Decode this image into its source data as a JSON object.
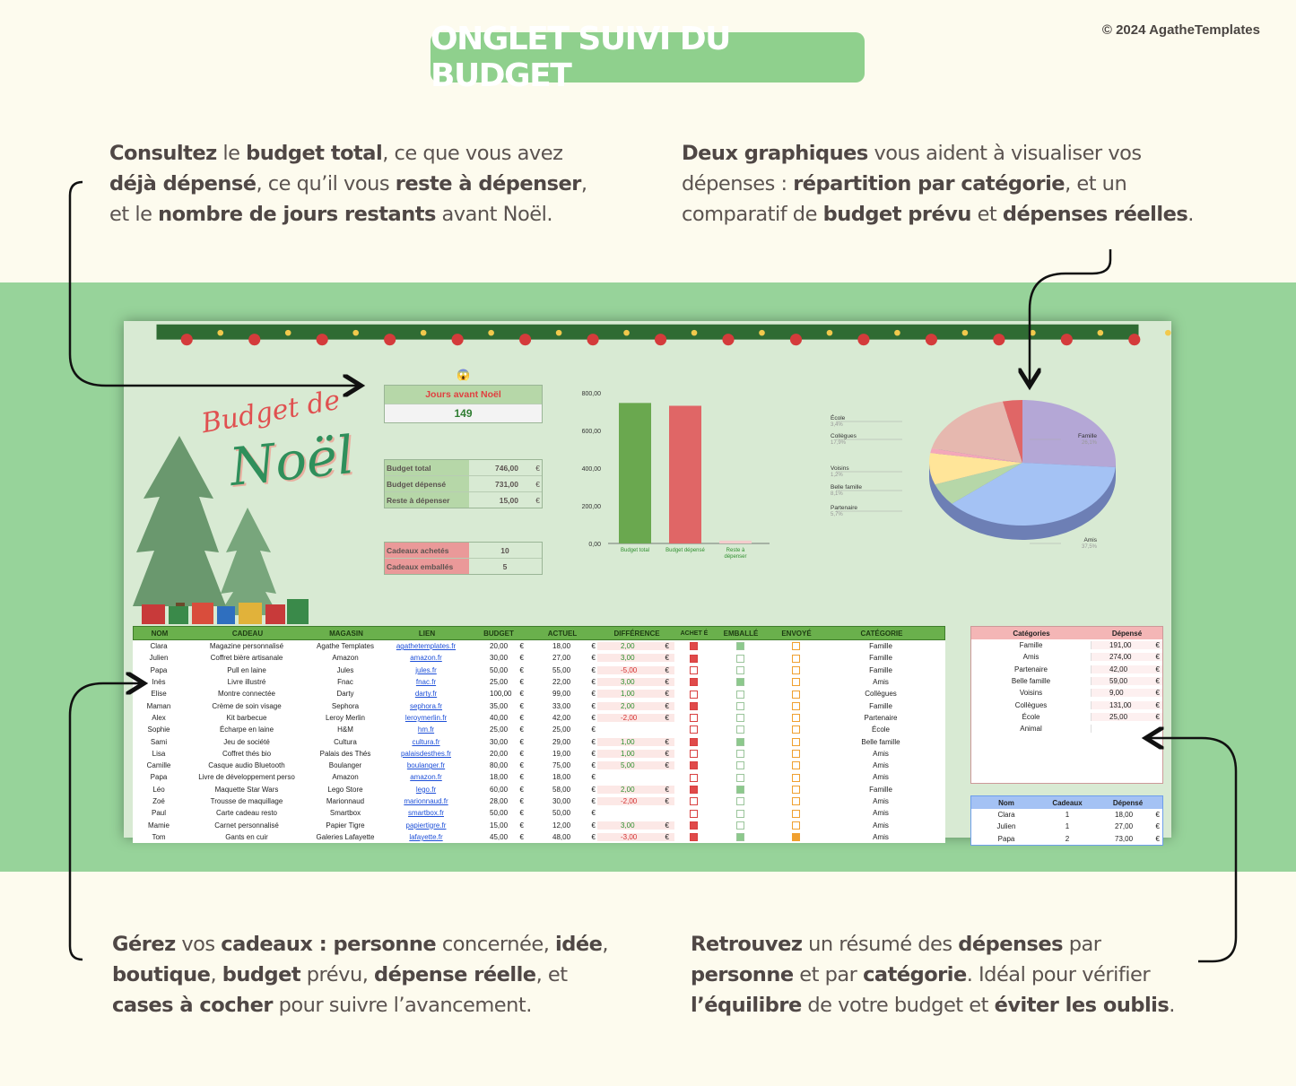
{
  "banner": "ONGLET SUIVI DU BUDGET",
  "copyright": "© 2024 AgatheTemplates",
  "descriptions": {
    "top_left": [
      {
        "t": "Consultez",
        "b": true
      },
      {
        "t": " le ",
        "b": false
      },
      {
        "t": "budget total",
        "b": true
      },
      {
        "t": ", ce que vous avez ",
        "b": false
      },
      {
        "t": "déjà dépensé",
        "b": true
      },
      {
        "t": ", ce qu’il vous ",
        "b": false
      },
      {
        "t": "reste à dépenser",
        "b": true
      },
      {
        "t": ", et le ",
        "b": false
      },
      {
        "t": "nombre de jours restants",
        "b": true
      },
      {
        "t": " avant Noël.",
        "b": false
      }
    ],
    "top_right": [
      {
        "t": "Deux graphiques",
        "b": true
      },
      {
        "t": " vous aident à visualiser vos dépenses : ",
        "b": false
      },
      {
        "t": "répartition par catégorie",
        "b": true
      },
      {
        "t": ", et un comparatif de ",
        "b": false
      },
      {
        "t": "budget prévu",
        "b": true
      },
      {
        "t": " et ",
        "b": false
      },
      {
        "t": "dépenses réelles",
        "b": true
      },
      {
        "t": ".",
        "b": false
      }
    ],
    "bottom_left": [
      {
        "t": "Gérez",
        "b": true
      },
      {
        "t": " vos ",
        "b": false
      },
      {
        "t": "cadeaux : personne",
        "b": true
      },
      {
        "t": " concernée, ",
        "b": false
      },
      {
        "t": "idée",
        "b": true
      },
      {
        "t": ", ",
        "b": false
      },
      {
        "t": "boutique",
        "b": true
      },
      {
        "t": ", ",
        "b": false
      },
      {
        "t": "budget",
        "b": true
      },
      {
        "t": " prévu, ",
        "b": false
      },
      {
        "t": "dépense réelle",
        "b": true
      },
      {
        "t": ", et ",
        "b": false
      },
      {
        "t": "cases à cocher",
        "b": true
      },
      {
        "t": " pour suivre l’avancement.",
        "b": false
      }
    ],
    "bottom_right": [
      {
        "t": "Retrouvez",
        "b": true
      },
      {
        "t": " un résumé des ",
        "b": false
      },
      {
        "t": "dépenses",
        "b": true
      },
      {
        "t": " par ",
        "b": false
      },
      {
        "t": "personne",
        "b": true
      },
      {
        "t": " et par ",
        "b": false
      },
      {
        "t": "catégorie",
        "b": true
      },
      {
        "t": ". Idéal pour vérifier ",
        "b": false
      },
      {
        "t": "l’équilibre",
        "b": true
      },
      {
        "t": " de votre budget et ",
        "b": false
      },
      {
        "t": "éviter les oublis",
        "b": true
      },
      {
        "t": ".",
        "b": false
      }
    ]
  },
  "sheet": {
    "logo_line1": "Budget de",
    "logo_line2": "Noël",
    "emoji": "😱",
    "days_label": "Jours avant Noël",
    "days_value": "149",
    "budget_rows": [
      {
        "label": "Budget total",
        "value": "746,00",
        "cur": "€"
      },
      {
        "label": "Budget dépensé",
        "value": "731,00",
        "cur": "€"
      },
      {
        "label": "Reste à dépenser",
        "value": "15,00",
        "cur": "€"
      }
    ],
    "gift_rows": [
      {
        "label": "Cadeaux achetés",
        "value": "10"
      },
      {
        "label": "Cadeaux emballés",
        "value": "5"
      }
    ],
    "table_headers": [
      "NOM",
      "CADEAU",
      "MAGASIN",
      "LIEN",
      "BUDGET",
      "ACTUEL",
      "DIFFÉRENCE",
      "ACHET É",
      "EMBALLÉ",
      "ENVOYÉ",
      "CATÉGORIE"
    ],
    "rows": [
      [
        "Clara",
        "Magazine personnalisé",
        "Agathe Templates",
        "agathetemplates.fr",
        "20,00",
        "18,00",
        "2,00",
        1,
        1,
        0,
        "Famille"
      ],
      [
        "Julien",
        "Coffret bière artisanale",
        "Amazon",
        "amazon.fr",
        "30,00",
        "27,00",
        "3,00",
        1,
        0,
        0,
        "Famille"
      ],
      [
        "Papa",
        "Pull en laine",
        "Jules",
        "jules.fr",
        "50,00",
        "55,00",
        "-5,00",
        0,
        0,
        0,
        "Famille"
      ],
      [
        "Inès",
        "Livre illustré",
        "Fnac",
        "fnac.fr",
        "25,00",
        "22,00",
        "3,00",
        1,
        1,
        0,
        "Amis"
      ],
      [
        "Elise",
        "Montre connectée",
        "Darty",
        "darty.fr",
        "100,00",
        "99,00",
        "1,00",
        0,
        0,
        0,
        "Collègues"
      ],
      [
        "Maman",
        "Crème de soin visage",
        "Sephora",
        "sephora.fr",
        "35,00",
        "33,00",
        "2,00",
        1,
        0,
        0,
        "Famille"
      ],
      [
        "Alex",
        "Kit barbecue",
        "Leroy Merlin",
        "leroymerlin.fr",
        "40,00",
        "42,00",
        "-2,00",
        0,
        0,
        0,
        "Partenaire"
      ],
      [
        "Sophie",
        "Écharpe en laine",
        "H&M",
        "hm.fr",
        "25,00",
        "25,00",
        "",
        0,
        0,
        0,
        "École"
      ],
      [
        "Sami",
        "Jeu de société",
        "Cultura",
        "cultura.fr",
        "30,00",
        "29,00",
        "1,00",
        1,
        1,
        0,
        "Belle famille"
      ],
      [
        "Lisa",
        "Coffret thés bio",
        "Palais des Thés",
        "palaisdesthes.fr",
        "20,00",
        "19,00",
        "1,00",
        0,
        0,
        0,
        "Amis"
      ],
      [
        "Camille",
        "Casque audio Bluetooth",
        "Boulanger",
        "boulanger.fr",
        "80,00",
        "75,00",
        "5,00",
        1,
        0,
        0,
        "Amis"
      ],
      [
        "Papa",
        "Livre de développement perso",
        "Amazon",
        "amazon.fr",
        "18,00",
        "18,00",
        "",
        0,
        0,
        0,
        "Amis"
      ],
      [
        "Léo",
        "Maquette Star Wars",
        "Lego Store",
        "lego.fr",
        "60,00",
        "58,00",
        "2,00",
        1,
        1,
        0,
        "Famille"
      ],
      [
        "Zoé",
        "Trousse de maquillage",
        "Marionnaud",
        "marionnaud.fr",
        "28,00",
        "30,00",
        "-2,00",
        0,
        0,
        0,
        "Amis"
      ],
      [
        "Paul",
        "Carte cadeau resto",
        "Smartbox",
        "smartbox.fr",
        "50,00",
        "50,00",
        "",
        0,
        0,
        0,
        "Amis"
      ],
      [
        "Mamie",
        "Carnet personnalisé",
        "Papier Tigre",
        "papiertigre.fr",
        "15,00",
        "12,00",
        "3,00",
        1,
        0,
        0,
        "Amis"
      ],
      [
        "Tom",
        "Gants en cuir",
        "Galeries Lafayette",
        "lafayette.fr",
        "45,00",
        "48,00",
        "-3,00",
        1,
        1,
        1,
        "Amis"
      ]
    ],
    "cat_headers": [
      "Catégories",
      "Dépensé"
    ],
    "categories": [
      [
        "Famille",
        "191,00"
      ],
      [
        "Amis",
        "274,00"
      ],
      [
        "Partenaire",
        "42,00"
      ],
      [
        "Belle famille",
        "59,00"
      ],
      [
        "Voisins",
        "9,00"
      ],
      [
        "Collègues",
        "131,00"
      ],
      [
        "École",
        "25,00"
      ],
      [
        "Animal",
        ""
      ]
    ],
    "person_headers": [
      "Nom",
      "Cadeaux",
      "Dépensé"
    ],
    "persons": [
      [
        "Clara",
        "1",
        "18,00"
      ],
      [
        "Julien",
        "1",
        "27,00"
      ],
      [
        "Papa",
        "2",
        "73,00"
      ]
    ],
    "currency": "€"
  },
  "chart_data": [
    {
      "type": "bar",
      "categories": [
        "Budget total",
        "Budget dépensé",
        "Reste à dépenser"
      ],
      "values": [
        746,
        731,
        15
      ],
      "colors": [
        "#6aa84f",
        "#e06666",
        "#f4cccc"
      ],
      "yticks": [
        "800,00",
        "600,00",
        "400,00",
        "200,00",
        "0,00"
      ],
      "ylim": [
        0,
        800
      ]
    },
    {
      "type": "pie",
      "labels": [
        "Famille",
        "Amis",
        "Partenaire",
        "Belle famille",
        "Voisins",
        "Collègues",
        "École"
      ],
      "percent_labels": [
        "26,1%",
        "37,5%",
        "5,7%",
        "8,1%",
        "1,2%",
        "17,9%",
        "3,4%"
      ],
      "values": [
        26.1,
        37.5,
        5.7,
        8.1,
        1.2,
        17.9,
        3.4
      ],
      "colors": [
        "#b4a7d6",
        "#a4c2f4",
        "#b6d7a8",
        "#ffe599",
        "#f4a7b9",
        "#e6b8af",
        "#e06666"
      ]
    }
  ]
}
